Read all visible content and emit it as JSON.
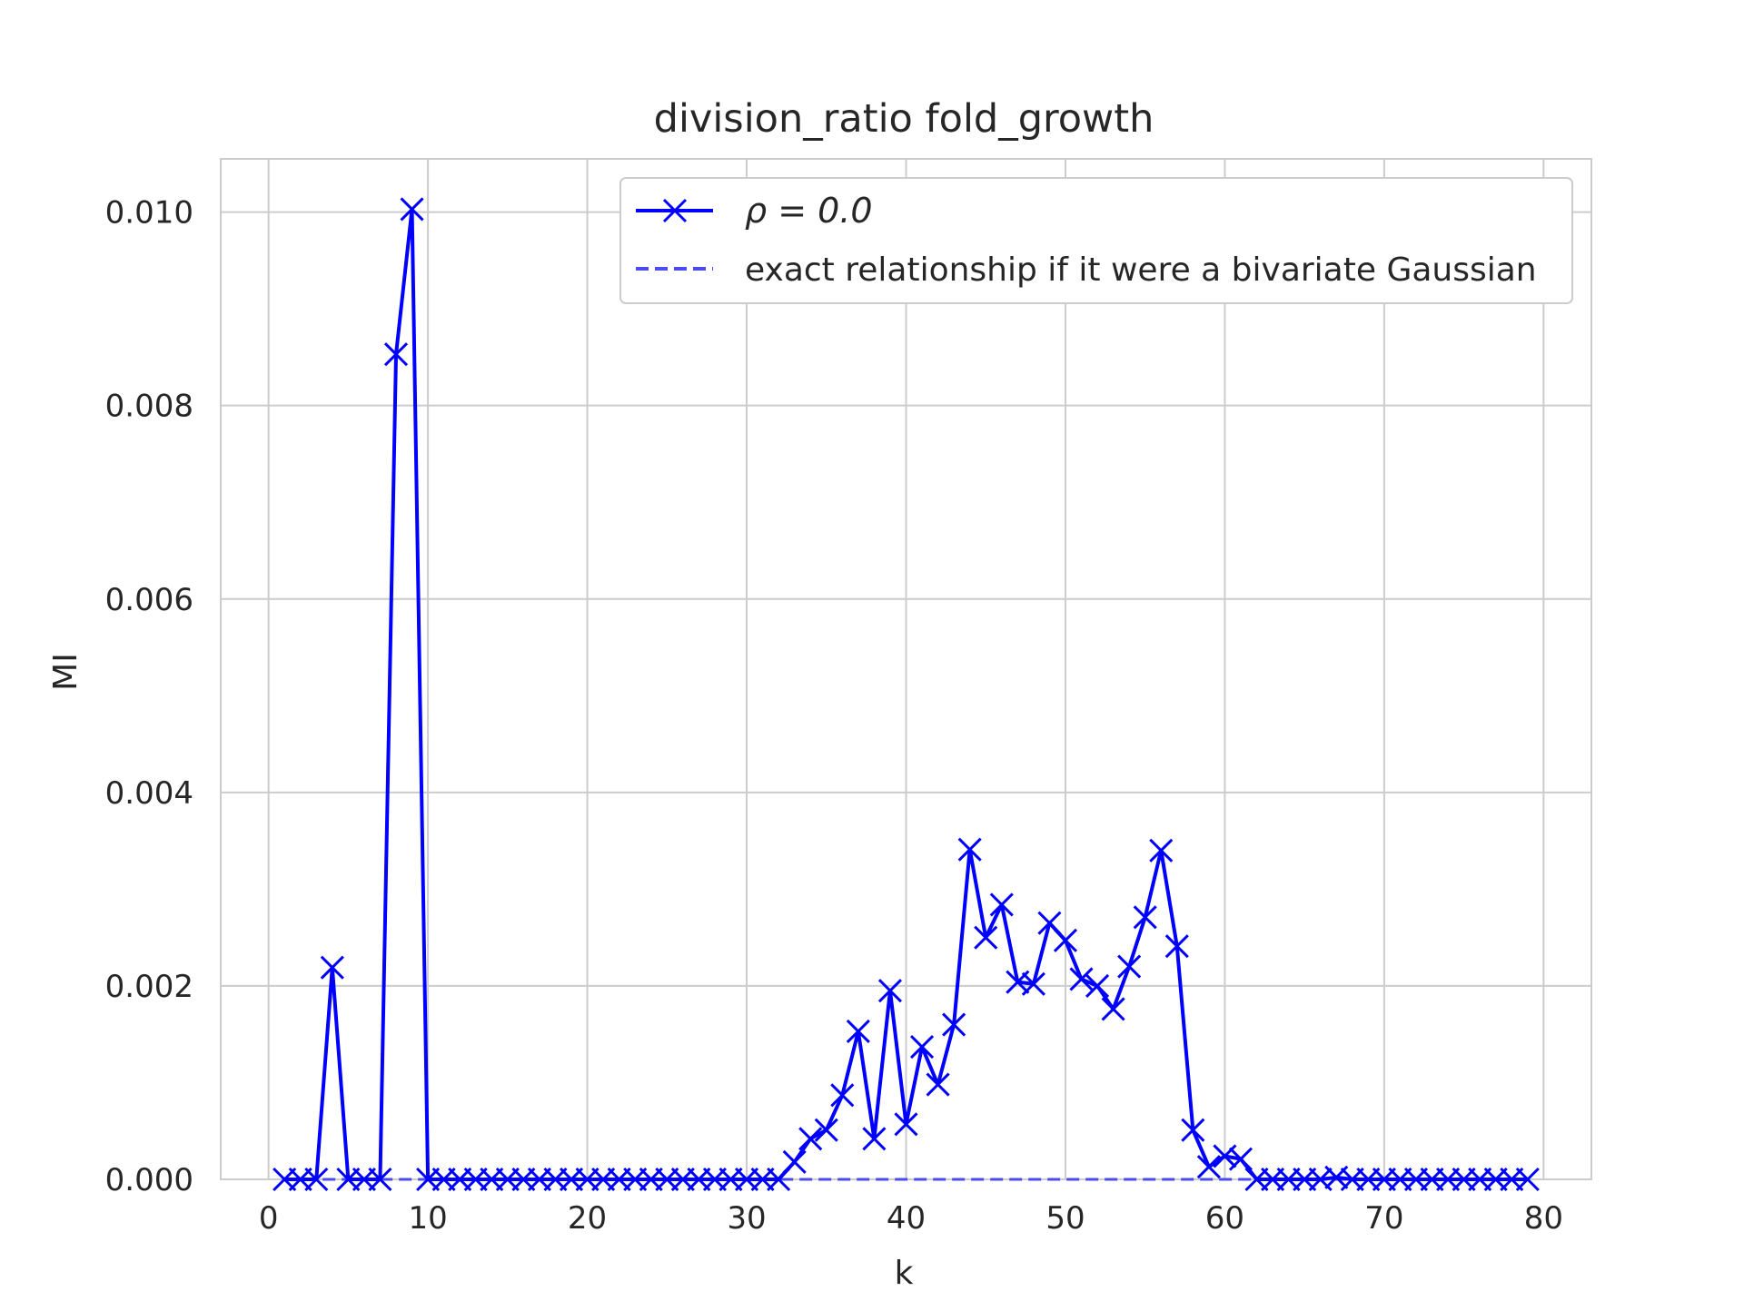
{
  "chart_data": {
    "type": "line",
    "title": "division_ratio fold_growth",
    "xlabel": "k",
    "ylabel": "MI",
    "xlim": [
      -3,
      83
    ],
    "ylim": [
      0,
      0.01055
    ],
    "x_ticks": [
      0,
      10,
      20,
      30,
      40,
      50,
      60,
      70,
      80
    ],
    "y_ticks": [
      0.0,
      0.002,
      0.004,
      0.006,
      0.008,
      0.01
    ],
    "y_tick_labels": [
      "0.000",
      "0.002",
      "0.004",
      "0.006",
      "0.008",
      "0.010"
    ],
    "grid": true,
    "legend_position": "top-right",
    "series": [
      {
        "name": "ρ = 0.0",
        "style": "solid",
        "marker": "x",
        "color": "#0000ff",
        "x": [
          1,
          2,
          3,
          4,
          5,
          6,
          7,
          8,
          9,
          10,
          11,
          12,
          13,
          14,
          15,
          16,
          17,
          18,
          19,
          20,
          21,
          22,
          23,
          24,
          25,
          26,
          27,
          28,
          29,
          30,
          31,
          32,
          33,
          34,
          35,
          36,
          37,
          38,
          39,
          40,
          41,
          42,
          43,
          44,
          45,
          46,
          47,
          48,
          49,
          50,
          51,
          52,
          53,
          54,
          55,
          56,
          57,
          58,
          59,
          60,
          61,
          62,
          63,
          64,
          65,
          66,
          67,
          68,
          69,
          70,
          71,
          72,
          73,
          74,
          75,
          76,
          77,
          78,
          79
        ],
        "y": [
          0,
          0,
          0,
          0.00219,
          0,
          0,
          0,
          0.00853,
          0.01003,
          0,
          0,
          0,
          0,
          0,
          0,
          0,
          0,
          0,
          0,
          0,
          0,
          0,
          0,
          0,
          0,
          0,
          0,
          0,
          0,
          0,
          0,
          0,
          0.00018,
          0.00042,
          0.00051,
          0.00087,
          0.00153,
          0.00042,
          0.00195,
          0.00057,
          0.00137,
          0.00098,
          0.0016,
          0.00341,
          0.0025,
          0.00284,
          0.00204,
          0.00202,
          0.00265,
          0.00247,
          0.00207,
          0.002,
          0.00176,
          0.0022,
          0.00271,
          0.0034,
          0.00241,
          0.00051,
          0.00013,
          0.00024,
          0.00021,
          0,
          0,
          0,
          0,
          0,
          2e-05,
          0,
          0,
          0,
          0,
          0,
          0,
          0,
          0,
          0,
          0,
          0,
          0
        ]
      },
      {
        "name": "exact relationship if it were a bivariate Gaussian",
        "style": "dashed",
        "marker": "none",
        "color": "#4b4bf0",
        "x": [
          1,
          79
        ],
        "y": [
          0,
          0
        ]
      }
    ]
  }
}
